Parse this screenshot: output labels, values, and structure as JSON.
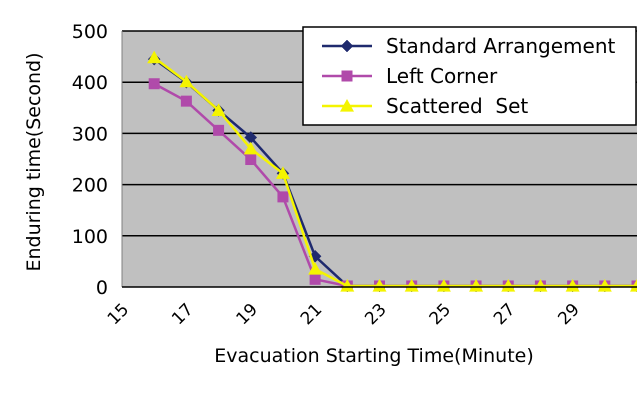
{
  "chart_data": {
    "type": "line",
    "title": "",
    "xlabel": "Evacuation Starting Time(Minute)",
    "ylabel": "Enduring time(Second)",
    "ylim": [
      0,
      500
    ],
    "yticks": [
      0,
      100,
      200,
      300,
      400,
      500
    ],
    "xlim": [
      15,
      31
    ],
    "xtick_labels": [
      "15",
      "17",
      "19",
      "21",
      "23",
      "25",
      "27",
      "29"
    ],
    "x": [
      16,
      17,
      18,
      19,
      20,
      21,
      22,
      23,
      24,
      25,
      26,
      27,
      28,
      29,
      30,
      31
    ],
    "grid": "horizontal",
    "plot_background": "#c0c0c0",
    "legend_position": "top-right",
    "series": [
      {
        "name": "Standard Arrangement",
        "color": "#1f2a6e",
        "marker": "diamond",
        "values": [
          445,
          400,
          345,
          292,
          222,
          60,
          2,
          2,
          2,
          2,
          2,
          2,
          2,
          2,
          2,
          2
        ]
      },
      {
        "name": "Left Corner",
        "color": "#b04aaa",
        "marker": "square",
        "values": [
          397,
          363,
          306,
          249,
          176,
          15,
          2,
          2,
          2,
          2,
          2,
          2,
          2,
          2,
          2,
          2
        ]
      },
      {
        "name": "Scattered  Set",
        "color": "#f4f400",
        "marker": "triangle",
        "values": [
          448,
          401,
          345,
          270,
          222,
          35,
          2,
          2,
          2,
          2,
          2,
          2,
          2,
          2,
          2,
          2
        ]
      }
    ]
  }
}
